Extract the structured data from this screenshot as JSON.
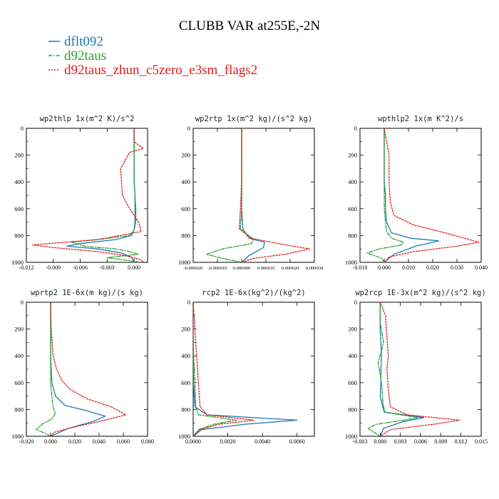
{
  "title": "CLUBB VAR at255E,-2N",
  "legend": [
    {
      "label": "dflt092",
      "color": "#1f77b4",
      "dash": "solid"
    },
    {
      "label": "d92taus",
      "color": "#2ca02c",
      "dash": "dashdot"
    },
    {
      "label": "d92taus_zhun_c5zero_e3sm_flags2",
      "color": "#e41a1c",
      "dash": "dotted"
    }
  ],
  "chart_data": [
    {
      "type": "line",
      "title": "wp2thlp  1x(m^2 K)/s^2",
      "xlim": [
        -0.012,
        0.0015
      ],
      "ylim": [
        1000,
        0
      ],
      "xticks": [
        -0.012,
        -0.009,
        -0.006,
        -0.003,
        0.0
      ],
      "xtick_labels": [
        "-0.012",
        "-0.009",
        "-0.006",
        "-0.003",
        "0.000"
      ],
      "yticks": [
        0,
        200,
        400,
        600,
        800,
        1000
      ],
      "series": [
        {
          "name": "dflt092",
          "x": [
            0.0,
            0.0,
            0.0,
            0.0001,
            0.0001,
            0.0001,
            0.0,
            -0.0003,
            -0.002,
            -0.006,
            -0.0075,
            -0.004,
            -0.0015,
            -0.0003,
            0.0
          ],
          "y": [
            0,
            200,
            400,
            500,
            600,
            700,
            760,
            800,
            830,
            860,
            880,
            900,
            930,
            960,
            1000
          ]
        },
        {
          "name": "d92taus",
          "x": [
            0.0,
            0.0,
            0.0,
            0.0001,
            0.0002,
            0.0002,
            0.0,
            -0.0005,
            -0.004,
            -0.007,
            -0.0055,
            -0.002,
            -0.0005,
            0.0005,
            -0.003,
            0.0008
          ],
          "y": [
            0,
            200,
            400,
            500,
            600,
            700,
            760,
            800,
            830,
            850,
            880,
            900,
            920,
            940,
            965,
            1000
          ]
        },
        {
          "name": "d92taus_zhun_c5zero_e3sm_flags2",
          "x": [
            0.0,
            0.0,
            0.001,
            -0.0005,
            -0.0015,
            -0.0013,
            -0.0005,
            0.0005,
            0.0008,
            -0.004,
            -0.0113,
            -0.009,
            -0.004,
            -0.001,
            0.0007,
            0.001
          ],
          "y": [
            0,
            100,
            150,
            180,
            300,
            500,
            600,
            700,
            770,
            830,
            870,
            890,
            920,
            950,
            980,
            1000
          ]
        }
      ]
    },
    {
      "type": "line",
      "title": "wp2rtp  1x(m^2 kg)/(s^2 kg)",
      "xlim": [
        -2e-05,
        3e-05
      ],
      "ylim": [
        1000,
        0
      ],
      "xticks": [
        -2e-05,
        -1e-05,
        0.0,
        1e-05,
        2e-05,
        3e-05
      ],
      "xtick_labels": [
        "-0.000020",
        "-0.000010",
        "0.000000",
        "0.000010",
        "0.000020",
        "0.000030"
      ],
      "yticks": [
        0,
        200,
        400,
        600,
        800,
        1000
      ],
      "series": [
        {
          "name": "dflt092",
          "x": [
            0.0,
            0.0,
            0.0,
            0.0,
            5e-07,
            3e-06,
            9.5e-06,
            9e-06,
            3e-06,
            0.0
          ],
          "y": [
            0,
            200,
            400,
            600,
            750,
            820,
            850,
            890,
            950,
            1000
          ]
        },
        {
          "name": "d92taus",
          "x": [
            0.0,
            0.0,
            0.0,
            0.0,
            -5e-07,
            5e-06,
            4e-06,
            -8e-06,
            -1.45e-05,
            -8e-06,
            0.0
          ],
          "y": [
            0,
            200,
            400,
            600,
            750,
            830,
            860,
            900,
            940,
            970,
            1000
          ]
        },
        {
          "name": "d92taus_zhun_c5zero_e3sm_flags2",
          "x": [
            0.0,
            0.0,
            0.0,
            -5e-07,
            -1e-06,
            4e-06,
            1.5e-05,
            2.8e-05,
            1.8e-05,
            5e-06,
            0.0
          ],
          "y": [
            0,
            200,
            400,
            600,
            750,
            820,
            860,
            900,
            940,
            970,
            1000
          ]
        }
      ]
    },
    {
      "type": "line",
      "title": "wpthlp2  1x(m K^2)/s",
      "xlim": [
        -0.01,
        0.04
      ],
      "ylim": [
        1000,
        0
      ],
      "xticks": [
        -0.01,
        0.0,
        0.01,
        0.02,
        0.03,
        0.04
      ],
      "xtick_labels": [
        "-0.010",
        "0.000",
        "0.010",
        "0.020",
        "0.030",
        "0.040"
      ],
      "yticks": [
        0,
        200,
        400,
        600,
        800,
        1000
      ],
      "series": [
        {
          "name": "dflt092",
          "x": [
            0.0,
            0.0,
            0.0,
            0.0005,
            0.0005,
            0.001,
            0.003,
            0.011,
            0.0225,
            0.013,
            0.004,
            0.0
          ],
          "y": [
            0,
            200,
            400,
            500,
            600,
            700,
            780,
            820,
            840,
            880,
            940,
            1000
          ]
        },
        {
          "name": "d92taus",
          "x": [
            0.0,
            0.0,
            0.0,
            0.0,
            0.0005,
            0.001,
            0.003,
            0.008,
            0.007,
            -0.002,
            -0.007,
            -0.001,
            0.0
          ],
          "y": [
            0,
            200,
            400,
            600,
            700,
            770,
            820,
            850,
            870,
            900,
            930,
            970,
            1000
          ]
        },
        {
          "name": "d92taus_zhun_c5zero_e3sm_flags2",
          "x": [
            0.0,
            0.001,
            0.002,
            0.002,
            0.0025,
            0.004,
            0.012,
            0.025,
            0.039,
            0.03,
            0.012,
            0.002,
            0.0
          ],
          "y": [
            0,
            100,
            200,
            400,
            550,
            650,
            720,
            780,
            850,
            880,
            920,
            960,
            1000
          ]
        }
      ]
    },
    {
      "type": "line",
      "title": "wprtp2  1E-6x(m kg)/(s kg)",
      "xlim": [
        -0.02,
        0.08
      ],
      "ylim": [
        1000,
        0
      ],
      "xticks": [
        -0.02,
        0.0,
        0.02,
        0.04,
        0.06,
        0.08
      ],
      "xtick_labels": [
        "-0.020",
        "0.000",
        "0.020",
        "0.040",
        "0.060",
        "0.080"
      ],
      "yticks": [
        0,
        200,
        400,
        600,
        800,
        1000
      ],
      "series": [
        {
          "name": "dflt092",
          "x": [
            0.0,
            0.0,
            0.0,
            0.0005,
            0.001,
            0.004,
            0.012,
            0.03,
            0.045,
            0.035,
            0.015,
            0.0
          ],
          "y": [
            0,
            200,
            400,
            500,
            600,
            700,
            770,
            810,
            850,
            890,
            940,
            1000
          ]
        },
        {
          "name": "d92taus",
          "x": [
            0.0,
            0.0,
            0.0,
            0.0,
            0.001,
            0.002,
            0.004,
            0.001,
            -0.007,
            -0.012,
            -0.004,
            0.0
          ],
          "y": [
            0,
            200,
            400,
            600,
            700,
            780,
            830,
            870,
            910,
            950,
            980,
            1000
          ]
        },
        {
          "name": "d92taus_zhun_c5zero_e3sm_flags2",
          "x": [
            0.0,
            0.0005,
            0.002,
            0.005,
            0.009,
            0.016,
            0.03,
            0.05,
            0.062,
            0.045,
            0.02,
            0.003,
            0.0
          ],
          "y": [
            0,
            200,
            400,
            500,
            580,
            650,
            720,
            780,
            840,
            880,
            930,
            970,
            1000
          ]
        }
      ]
    },
    {
      "type": "line",
      "title": "rcp2  1E-6x(kg^2)/(kg^2)",
      "xlim": [
        0.0,
        0.007
      ],
      "ylim": [
        1000,
        0
      ],
      "xticks": [
        0.0,
        0.002,
        0.004,
        0.006
      ],
      "xtick_labels": [
        "0.0000",
        "0.0020",
        "0.0040",
        "0.0060"
      ],
      "yticks": [
        0,
        200,
        400,
        600,
        800,
        1000
      ],
      "series": [
        {
          "name": "dflt092",
          "x": [
            0.0,
            0.0,
            0.0,
            2e-05,
            0.0001,
            0.0008,
            0.006,
            0.003,
            0.0005,
            0.0
          ],
          "y": [
            0,
            200,
            400,
            600,
            780,
            840,
            880,
            910,
            950,
            1000
          ]
        },
        {
          "name": "d92taus",
          "x": [
            0.0,
            0.0,
            3e-05,
            0.0001,
            0.00015,
            0.0003,
            0.0025,
            0.0012,
            0.0003,
            0.0
          ],
          "y": [
            0,
            200,
            400,
            600,
            780,
            840,
            880,
            910,
            950,
            1000
          ]
        },
        {
          "name": "d92taus_zhun_c5zero_e3sm_flags2",
          "x": [
            0.0,
            0.0001,
            0.0002,
            0.0003,
            0.0004,
            0.0008,
            0.0035,
            0.0015,
            0.0004,
            0.0
          ],
          "y": [
            0,
            200,
            400,
            600,
            780,
            840,
            880,
            910,
            950,
            1000
          ]
        }
      ]
    },
    {
      "type": "line",
      "title": "wp2rcp  1E-3x(m^2 kg)/(s^2 kg)",
      "xlim": [
        -0.003,
        0.015
      ],
      "ylim": [
        1000,
        0
      ],
      "xticks": [
        -0.003,
        0.0,
        0.003,
        0.006,
        0.009,
        0.012,
        0.015
      ],
      "xtick_labels": [
        "-0.003",
        "0.000",
        "0.003",
        "0.006",
        "0.009",
        "0.012",
        "0.015"
      ],
      "yticks": [
        0,
        200,
        400,
        600,
        800,
        1000
      ],
      "series": [
        {
          "name": "dflt092",
          "x": [
            0.0,
            0.0,
            0.0002,
            0.0001,
            0.0001,
            0.0,
            0.0006,
            0.0065,
            0.0035,
            0.0005,
            0.0
          ],
          "y": [
            0,
            200,
            400,
            500,
            600,
            700,
            820,
            860,
            890,
            940,
            1000
          ]
        },
        {
          "name": "d92taus",
          "x": [
            0.0,
            0.0,
            0.0005,
            -0.0003,
            0.0002,
            0.0004,
            0.0007,
            0.0055,
            0.0035,
            -0.0005,
            -0.0018,
            0.0
          ],
          "y": [
            0,
            150,
            300,
            450,
            600,
            750,
            820,
            860,
            880,
            910,
            940,
            1000
          ]
        },
        {
          "name": "d92taus_zhun_c5zero_e3sm_flags2",
          "x": [
            0.0,
            0.0008,
            0.0009,
            0.0012,
            0.001,
            0.0012,
            0.0015,
            0.004,
            0.0118,
            0.008,
            0.0015,
            0.0
          ],
          "y": [
            0,
            100,
            200,
            400,
            500,
            650,
            780,
            840,
            880,
            910,
            950,
            1000
          ]
        }
      ]
    }
  ]
}
